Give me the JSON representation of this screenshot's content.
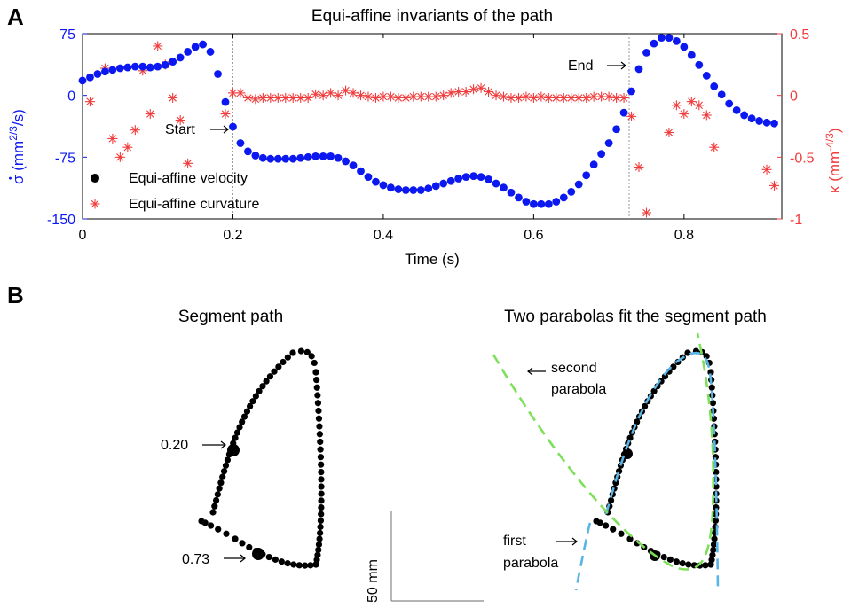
{
  "panels": {
    "a_letter": "A",
    "b_letter": "B"
  },
  "colors": {
    "velocity": "#0b18f0",
    "curvature": "#f03c3c",
    "path": "#000000",
    "fit_blue": "#5ab4e6",
    "fit_green": "#7ee05a",
    "vline": "#999999"
  },
  "chart_data": [
    {
      "type": "scatter",
      "title": "Equi-affine invariants of the path",
      "xlabel": "Time (s)",
      "ylabel_left": "σ̇ (mm^{2/3}/s)",
      "ylabel_left_parts": {
        "sym": "σ",
        "dot": "•",
        "open": " (mm",
        "sup": "2/3",
        "close": "/s)"
      },
      "ylabel_right": "κ (mm^{-4/3})",
      "ylabel_right_parts": {
        "sym": "κ (mm",
        "sup": "-4/3",
        "close": ")"
      },
      "xlim": [
        0,
        0.93
      ],
      "ylim_left": [
        -150,
        75
      ],
      "ylim_right": [
        -1,
        0.5
      ],
      "xticks": [
        "0",
        "0.2",
        "0.4",
        "0.6",
        "0.8"
      ],
      "xtick_values": [
        0,
        0.2,
        0.4,
        0.6,
        0.8
      ],
      "yticks_left": [
        "75",
        "0",
        "-75",
        "-150"
      ],
      "ytick_left_values": [
        75,
        0,
        -75,
        -150
      ],
      "yticks_right": [
        "0.5",
        "0",
        "-0.5",
        "-1"
      ],
      "ytick_right_values": [
        0.5,
        0,
        -0.5,
        -1
      ],
      "legend": {
        "position": "lower-left",
        "velocity_label": "Equi-affine velocity",
        "curvature_label": "Equi-affine curvature"
      },
      "annotations": {
        "start_label": "Start",
        "start_time": 0.2,
        "end_label": "End",
        "end_time": 0.727
      },
      "series": [
        {
          "name": "Equi-affine velocity",
          "axis": "left",
          "marker": "dot",
          "x": [
            0,
            0.01,
            0.02,
            0.03,
            0.04,
            0.05,
            0.06,
            0.07,
            0.08,
            0.09,
            0.1,
            0.11,
            0.12,
            0.13,
            0.14,
            0.15,
            0.16,
            0.17,
            0.18,
            0.19,
            0.2,
            0.21,
            0.22,
            0.23,
            0.24,
            0.25,
            0.26,
            0.27,
            0.28,
            0.29,
            0.3,
            0.31,
            0.32,
            0.33,
            0.34,
            0.35,
            0.36,
            0.37,
            0.38,
            0.39,
            0.4,
            0.41,
            0.42,
            0.43,
            0.44,
            0.45,
            0.46,
            0.47,
            0.48,
            0.49,
            0.5,
            0.51,
            0.52,
            0.53,
            0.54,
            0.55,
            0.56,
            0.57,
            0.58,
            0.59,
            0.6,
            0.61,
            0.62,
            0.63,
            0.64,
            0.65,
            0.66,
            0.67,
            0.68,
            0.69,
            0.7,
            0.71,
            0.72,
            0.73,
            0.74,
            0.75,
            0.76,
            0.77,
            0.78,
            0.79,
            0.8,
            0.81,
            0.82,
            0.83,
            0.84,
            0.85,
            0.86,
            0.87,
            0.88,
            0.89,
            0.9,
            0.91,
            0.92
          ],
          "y": [
            18,
            22,
            26,
            29,
            31,
            33,
            34,
            35,
            35,
            34,
            35,
            37,
            41,
            46,
            53,
            59,
            62,
            53,
            26,
            -8,
            -38,
            -58,
            -68,
            -73,
            -76,
            -77,
            -77,
            -77,
            -77,
            -76,
            -75,
            -74,
            -74,
            -74,
            -76,
            -80,
            -85,
            -92,
            -99,
            -105,
            -109,
            -112,
            -114,
            -115,
            -115,
            -115,
            -113,
            -110,
            -107,
            -104,
            -101,
            -99,
            -98,
            -99,
            -102,
            -107,
            -112,
            -118,
            -124,
            -129,
            -132,
            -132,
            -132,
            -129,
            -124,
            -117,
            -108,
            -97,
            -84,
            -71,
            -58,
            -41,
            -21,
            5,
            32,
            52,
            63,
            70,
            70,
            66,
            59,
            49,
            37,
            24,
            11,
            1,
            -10,
            -18,
            -24,
            -28,
            -31,
            -33,
            -34
          ]
        },
        {
          "name": "Equi-affine curvature",
          "axis": "right",
          "marker": "star",
          "x": [
            0.01,
            0.03,
            0.04,
            0.05,
            0.06,
            0.07,
            0.08,
            0.09,
            0.1,
            0.11,
            0.12,
            0.13,
            0.14,
            0.19,
            0.2,
            0.21,
            0.22,
            0.23,
            0.24,
            0.25,
            0.26,
            0.27,
            0.28,
            0.29,
            0.3,
            0.31,
            0.32,
            0.33,
            0.34,
            0.35,
            0.36,
            0.37,
            0.38,
            0.39,
            0.4,
            0.41,
            0.42,
            0.43,
            0.44,
            0.45,
            0.46,
            0.47,
            0.48,
            0.49,
            0.5,
            0.51,
            0.52,
            0.53,
            0.54,
            0.55,
            0.56,
            0.57,
            0.58,
            0.59,
            0.6,
            0.61,
            0.62,
            0.63,
            0.64,
            0.65,
            0.66,
            0.67,
            0.68,
            0.69,
            0.7,
            0.71,
            0.72,
            0.73,
            0.74,
            0.75,
            0.78,
            0.79,
            0.8,
            0.81,
            0.82,
            0.83,
            0.84,
            0.91,
            0.92
          ],
          "y": [
            -0.05,
            0.22,
            -0.35,
            -0.5,
            -0.42,
            -0.28,
            0.2,
            -0.15,
            0.4,
            0.25,
            -0.02,
            -0.2,
            -0.55,
            -0.15,
            0.02,
            0.02,
            -0.02,
            -0.03,
            -0.02,
            -0.02,
            -0.02,
            -0.02,
            -0.02,
            -0.02,
            -0.02,
            0.01,
            0.0,
            0.02,
            0.0,
            0.04,
            0.02,
            0.0,
            -0.01,
            -0.02,
            -0.01,
            -0.01,
            -0.02,
            -0.02,
            -0.01,
            -0.01,
            -0.01,
            -0.01,
            0.0,
            0.02,
            0.03,
            0.03,
            0.05,
            0.06,
            0.03,
            0.0,
            -0.01,
            -0.02,
            -0.02,
            -0.01,
            -0.02,
            -0.01,
            -0.02,
            -0.02,
            -0.02,
            -0.02,
            -0.02,
            -0.02,
            -0.01,
            -0.01,
            -0.01,
            -0.02,
            -0.02,
            -0.17,
            -0.58,
            -0.95,
            -0.3,
            -0.08,
            -0.15,
            -0.05,
            -0.08,
            -0.16,
            -0.42,
            -0.6,
            -0.73
          ]
        }
      ]
    }
  ],
  "segment_path": {
    "title": "Segment path",
    "label_020": "0.20",
    "label_073": "0.73"
  },
  "parabola_fit": {
    "title": "Two parabolas fit the segment path",
    "second_label_1": "second",
    "second_label_2": "parabola",
    "first_label_1": "first",
    "first_label_2": "parabola"
  },
  "scalebar": {
    "label": "50 mm"
  }
}
